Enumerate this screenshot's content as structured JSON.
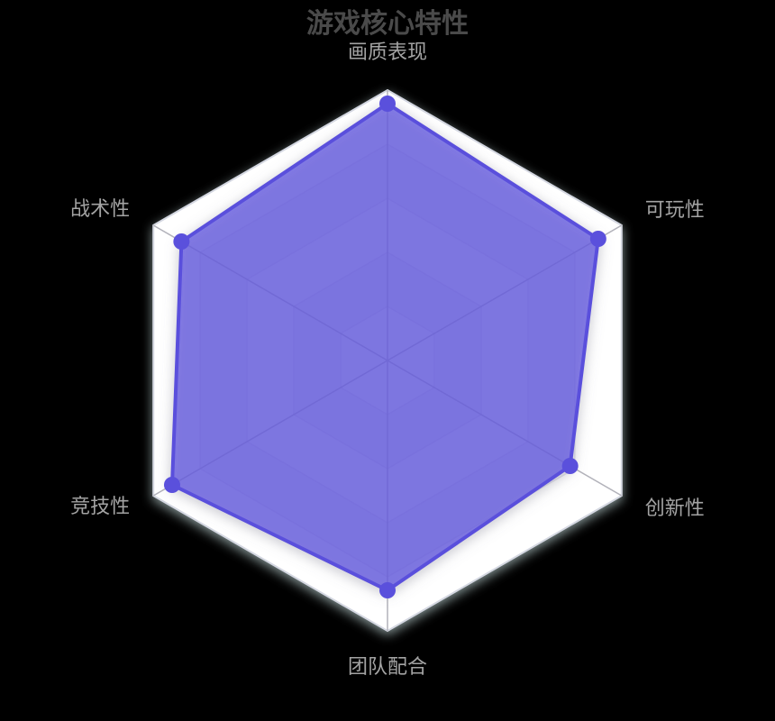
{
  "chart_data": {
    "type": "radar",
    "title": "游戏核心特性",
    "levels": 5,
    "max": 100,
    "axis_order": "clockwise-from-top",
    "indicators": [
      "画质表现",
      "可玩性",
      "创新性",
      "团队配合",
      "竞技性",
      "战术性"
    ],
    "series": [
      {
        "name": "游戏核心特性",
        "values": [
          95,
          90,
          78,
          85,
          92,
          88
        ]
      }
    ],
    "legend_position": "none",
    "grid": true,
    "colors": {
      "fill": "#6358E2",
      "fill_opacity": 0.75,
      "stroke": "#5A50DC",
      "point": "#5A50DC",
      "grid_line": "#e2e2ea",
      "outer_line": "#d5d8e2",
      "axis_line": "#b2b2ba",
      "split_area_a": "#ffffff",
      "split_area_b": "#f4f4f8",
      "title_color": "#4a4a4a",
      "label_color": "#a3a3a3",
      "background": "#000000"
    }
  }
}
